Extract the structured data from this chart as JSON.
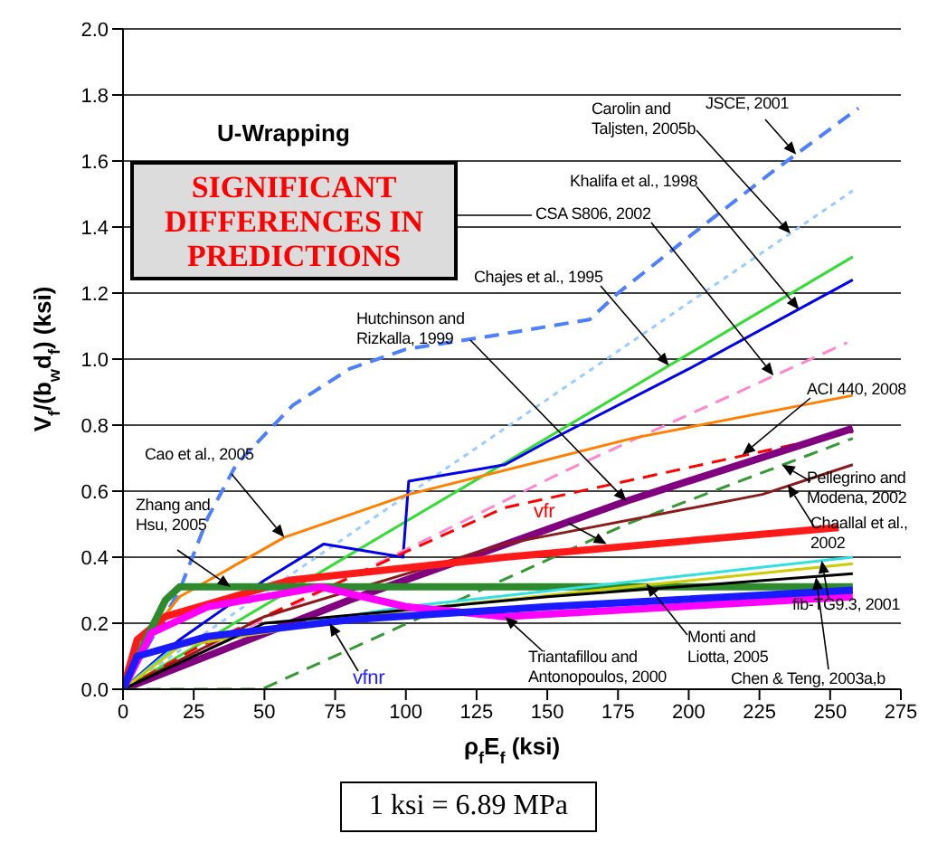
{
  "chart_data": {
    "type": "line",
    "title": "U-Wrapping",
    "xlabel": "ρ$_{f}$E$_{f}$ (ksi)",
    "ylabel": "V$_{f}$/(b$_{w}$d$_{f}$) (ksi)",
    "xlim": [
      0,
      275
    ],
    "xticks": [
      0,
      25,
      50,
      75,
      100,
      125,
      150,
      175,
      200,
      225,
      250,
      275
    ],
    "ylim": [
      0,
      2
    ],
    "yticks": [
      {
        "value": 0,
        "label": "0.0"
      },
      0.2,
      0.4,
      0.6,
      0.8,
      {
        "value": 1,
        "label": "1.0"
      },
      1.2,
      1.4,
      1.6,
      1.8,
      {
        "value": 2,
        "label": "2.0"
      }
    ],
    "grid": "y",
    "legend": false,
    "marker": "none",
    "series": [
      {
        "color": "#4d7fff",
        "line_style": "dashed",
        "x": [
          0,
          10,
          20,
          30,
          40,
          60,
          80,
          100,
          130,
          165,
          175,
          200,
          230,
          260
        ],
        "values": [
          0,
          0.15,
          0.3,
          0.52,
          0.68,
          0.86,
          0.97,
          1.03,
          1.07,
          1.12,
          1.2,
          1.37,
          1.57,
          1.76
        ]
      },
      {
        "color": "#99ccff",
        "line_style": "dotted",
        "x": [
          0,
          258
        ],
        "values": [
          0,
          1.51
        ]
      },
      {
        "color": "#33dd33",
        "line_style": "solid",
        "x": [
          0,
          258
        ],
        "values": [
          0,
          1.31
        ]
      },
      {
        "color": "#0000ee",
        "line_style": "solid",
        "x": [
          0,
          20,
          50,
          71,
          99,
          101,
          135,
          150,
          200,
          258
        ],
        "values": [
          0,
          0.15,
          0.33,
          0.44,
          0.4,
          0.63,
          0.68,
          0.75,
          0.97,
          1.24
        ]
      },
      {
        "color": "#ff88cc",
        "line_style": "dashed",
        "x": [
          0,
          156,
          256
        ],
        "values": [
          0,
          0.66,
          1.05
        ]
      },
      {
        "color": "#ff8000",
        "line_style": "solid",
        "x": [
          0,
          5,
          20,
          57,
          101,
          180,
          258
        ],
        "values": [
          0,
          0.12,
          0.28,
          0.46,
          0.59,
          0.76,
          0.89
        ]
      },
      {
        "color": "#ff0000",
        "line_style": "dashed",
        "x": [
          0,
          27,
          101,
          135,
          258
        ],
        "values": [
          0,
          0.13,
          0.42,
          0.55,
          0.78
        ]
      },
      {
        "color": "#800080",
        "line_style": "solid",
        "x": [
          0,
          80,
          178,
          258
        ],
        "values": [
          0,
          0.27,
          0.57,
          0.79
        ]
      },
      {
        "color": "#339933",
        "line_style": "dashed",
        "x": [
          0,
          49,
          178,
          258
        ],
        "values": [
          0,
          0,
          0.5,
          0.76
        ]
      },
      {
        "color": "#8b1a1a",
        "line_style": "solid",
        "x": [
          0,
          50,
          135,
          226,
          258
        ],
        "values": [
          0,
          0.22,
          0.44,
          0.59,
          0.68
        ]
      },
      {
        "color": "#ff1a1a",
        "line_style": "solid",
        "x": [
          0,
          5,
          15,
          59,
          135,
          253
        ],
        "values": [
          0,
          0.15,
          0.22,
          0.33,
          0.4,
          0.49
        ]
      },
      {
        "color": "#2d8a2d",
        "line_style": "solid",
        "x": [
          0,
          8,
          15,
          20,
          258
        ],
        "values": [
          0,
          0.15,
          0.27,
          0.31,
          0.31
        ]
      },
      {
        "color": "#33e0e0",
        "line_style": "solid",
        "x": [
          0,
          20,
          100,
          258
        ],
        "values": [
          0,
          0.14,
          0.25,
          0.4
        ]
      },
      {
        "color": "#cccc00",
        "line_style": "solid",
        "x": [
          0,
          20,
          100,
          258
        ],
        "values": [
          0,
          0.13,
          0.24,
          0.38
        ]
      },
      {
        "color": "#000000",
        "line_style": "solid",
        "x": [
          0,
          50,
          150,
          258
        ],
        "values": [
          0,
          0.2,
          0.28,
          0.35
        ]
      },
      {
        "color": "#ff00ff",
        "line_style": "solid",
        "x": [
          0,
          10,
          30,
          70,
          100,
          135,
          258
        ],
        "values": [
          0,
          0.17,
          0.25,
          0.31,
          0.25,
          0.22,
          0.28
        ]
      },
      {
        "color": "#1a1aff",
        "line_style": "solid",
        "x": [
          0,
          5,
          30,
          80,
          150,
          258
        ],
        "values": [
          0,
          0.1,
          0.16,
          0.21,
          0.25,
          0.3
        ]
      }
    ],
    "annotations": [
      "SIGNIFICANT DIFFERENCES IN PREDICTIONS",
      "1 ksi = 6.89 MPa",
      {
        "text": "JSCE, 2001",
        "x": 238,
        "y": 1.62
      },
      {
        "text": "Carolin and Taljsten, 2005b",
        "x": 236,
        "y": 1.38
      },
      {
        "text": "Khalifa et al., 1998",
        "x": 239,
        "y": 1.15
      },
      {
        "text": "CSA S806, 2002",
        "x": 230,
        "y": 0.95
      },
      {
        "text": "Chajes et al., 1995",
        "x": 193,
        "y": 0.98
      },
      {
        "text": "Hutchinson and Rizkalla, 1999",
        "x": 178,
        "y": 0.57
      },
      {
        "text": "ACI 440, 2008",
        "x": 219,
        "y": 0.71
      },
      {
        "text": "Pellegrino and Modena, 2002",
        "x": 233,
        "y": 0.68
      },
      {
        "text": "Chaallal et al., 2002",
        "x": 235,
        "y": 0.62
      },
      {
        "text": "fib-TG9.3, 2001",
        "x": 247,
        "y": 0.39
      },
      {
        "text": "Monti and Liotta, 2005",
        "x": 185,
        "y": 0.32
      },
      {
        "text": "Chen & Teng, 2003a,b",
        "x": 245,
        "y": 0.34
      },
      {
        "text": "Triantafillou and Antonopoulos, 2000",
        "x": 135,
        "y": 0.22
      },
      {
        "text": "vfr",
        "x": 171,
        "y": 0.44
      },
      {
        "text": "vfnr",
        "x": 73,
        "y": 0.2
      },
      {
        "text": "Cao et al., 2005",
        "x": 57,
        "y": 0.46
      },
      {
        "text": "Zhang and Hsu, 2005",
        "x": 38,
        "y": 0.31
      }
    ]
  }
}
